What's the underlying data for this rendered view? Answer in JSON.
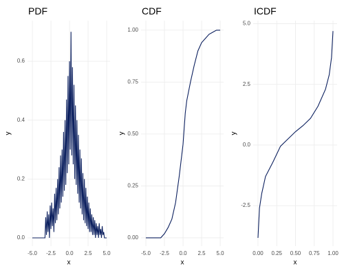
{
  "chart_data": [
    {
      "type": "line",
      "title": "PDF",
      "x_label": "x",
      "y_label": "y",
      "color": "#0b1f5e",
      "grid": true,
      "xlim": [
        -5.65,
        5.46
      ],
      "ylim": [
        -0.028,
        0.738
      ],
      "xticks": [
        {
          "value": -5,
          "label": "-5.0"
        },
        {
          "value": -2.5,
          "label": "-2.5"
        },
        {
          "value": 0,
          "label": "0.0"
        },
        2.5,
        {
          "value": 5,
          "label": "5.0"
        }
      ],
      "yticks": [
        {
          "value": 0,
          "label": "0.0"
        },
        0.2,
        0.4,
        0.6
      ],
      "x": [
        -5,
        -3.3,
        -3.2,
        -3.1,
        -3.0,
        -2.9,
        -2.8,
        -2.7,
        -2.6,
        -2.5,
        -2.4,
        -2.3,
        -2.2,
        -2.1,
        -2.0,
        -1.9,
        -1.8,
        -1.7,
        -1.6,
        -1.5,
        -1.4,
        -1.3,
        -1.2,
        -1.1,
        -1.0,
        -0.9,
        -0.8,
        -0.7,
        -0.6,
        -0.5,
        -0.4,
        -0.3,
        -0.2,
        -0.1,
        0.0,
        0.1,
        0.2,
        0.3,
        0.4,
        0.5,
        0.6,
        0.7,
        0.8,
        0.9,
        1.0,
        1.1,
        1.2,
        1.3,
        1.4,
        1.5,
        1.6,
        1.7,
        1.8,
        1.9,
        2.0,
        2.1,
        2.2,
        2.3,
        2.4,
        2.5,
        2.6,
        2.7,
        2.8,
        2.9,
        3.0,
        3.1,
        3.2,
        3.3,
        3.4,
        3.5,
        3.6,
        3.7,
        3.8,
        3.9,
        4.0,
        4.1,
        4.2,
        4.3,
        4.4,
        4.5,
        4.6,
        4.7,
        5
      ],
      "values": [
        0,
        0,
        0.07,
        0.01,
        0.09,
        0.02,
        0.08,
        0.0,
        0.11,
        0.03,
        0.12,
        0.04,
        0.1,
        0.02,
        0.15,
        0.05,
        0.17,
        0.06,
        0.2,
        0.08,
        0.24,
        0.1,
        0.28,
        0.12,
        0.3,
        0.14,
        0.36,
        0.16,
        0.4,
        0.18,
        0.47,
        0.22,
        0.55,
        0.25,
        0.6,
        0.3,
        0.7,
        0.28,
        0.58,
        0.25,
        0.52,
        0.2,
        0.45,
        0.18,
        0.4,
        0.15,
        0.35,
        0.12,
        0.3,
        0.1,
        0.27,
        0.08,
        0.22,
        0.06,
        0.2,
        0.05,
        0.17,
        0.04,
        0.14,
        0.03,
        0.12,
        0.02,
        0.1,
        0.02,
        0.08,
        0.01,
        0.07,
        0.01,
        0.06,
        0.0,
        0.05,
        0.01,
        0.04,
        0.0,
        0.05,
        0.01,
        0.03,
        0.0,
        0.04,
        0.01,
        0.02,
        0,
        0
      ]
    },
    {
      "type": "line",
      "title": "CDF",
      "x_label": "x",
      "y_label": "y",
      "color": "#0b1f5e",
      "grid": true,
      "xlim": [
        -5.65,
        5.46
      ],
      "ylim": [
        -0.04,
        1.046
      ],
      "xticks": [
        {
          "value": -5,
          "label": "-5.0"
        },
        {
          "value": -2.5,
          "label": "-2.5"
        },
        {
          "value": 0,
          "label": "0.0"
        },
        2.5,
        {
          "value": 5,
          "label": "5.0"
        }
      ],
      "yticks": [
        {
          "value": 0,
          "label": "0.00"
        },
        0.25,
        {
          "value": 0.5,
          "label": "0.50"
        },
        0.75,
        {
          "value": 1,
          "label": "1.00"
        }
      ],
      "x": [
        -5,
        -3,
        -2.5,
        -2,
        -1.5,
        -1,
        -0.5,
        0,
        0.3,
        0.5,
        1,
        1.5,
        2,
        2.5,
        3,
        3.5,
        4,
        4.5,
        5
      ],
      "values": [
        0,
        0,
        0.02,
        0.05,
        0.09,
        0.17,
        0.3,
        0.45,
        0.6,
        0.66,
        0.75,
        0.83,
        0.9,
        0.94,
        0.96,
        0.98,
        0.99,
        1,
        1
      ]
    },
    {
      "type": "line",
      "title": "ICDF",
      "x_label": "x",
      "y_label": "y",
      "color": "#0b1f5e",
      "grid": true,
      "xlim": [
        -0.064,
        1.055
      ],
      "ylim": [
        -4.17,
        5.13
      ],
      "xticks": [
        {
          "value": 0,
          "label": "0.00"
        },
        0.25,
        {
          "value": 0.5,
          "label": "0.50"
        },
        0.75,
        {
          "value": 1,
          "label": "1.00"
        }
      ],
      "yticks": [
        -2.5,
        {
          "value": 0,
          "label": "0.0"
        },
        2.5,
        {
          "value": 5,
          "label": "5.0"
        }
      ],
      "x": [
        0,
        0.02,
        0.05,
        0.1,
        0.2,
        0.3,
        0.4,
        0.5,
        0.6,
        0.7,
        0.8,
        0.9,
        0.95,
        0.98,
        1
      ],
      "values": [
        -3.83,
        -2.6,
        -2,
        -1.3,
        -0.7,
        -0.05,
        0.25,
        0.55,
        0.8,
        1.1,
        1.6,
        2.3,
        2.9,
        3.6,
        4.7
      ]
    }
  ]
}
